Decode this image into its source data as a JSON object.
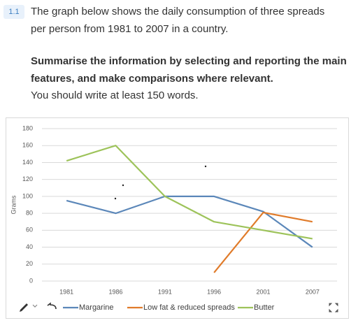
{
  "section": "1.1",
  "task": [
    "The graph below shows the daily consumption of three spreads",
    "per person from 1981 to 2007 in a country."
  ],
  "instructions": [
    "Summarise the information by selecting and reporting the main",
    "features, and make comparisons where relevant."
  ],
  "requirement": "You should write at least 150 words.",
  "chart_data": {
    "type": "line",
    "y_label": "Grams",
    "categories": [
      "1981",
      "1986",
      "1991",
      "1996",
      "2001",
      "2007"
    ],
    "series": [
      {
        "name": "Margarine",
        "color": "#5b87b9",
        "values": [
          95,
          80,
          100,
          100,
          82,
          40
        ]
      },
      {
        "name": "Low fat & reduced spreads",
        "color": "#e07b2a",
        "values": [
          null,
          null,
          null,
          10,
          81,
          70
        ]
      },
      {
        "name": "Butter",
        "color": "#9dc35a",
        "values": [
          142,
          160,
          100,
          70,
          60,
          50
        ]
      }
    ],
    "ylim": [
      0,
      180
    ],
    "yticks": [
      0,
      20,
      40,
      60,
      80,
      100,
      120,
      140,
      160,
      180
    ],
    "grid": true,
    "legend": "bottom"
  }
}
